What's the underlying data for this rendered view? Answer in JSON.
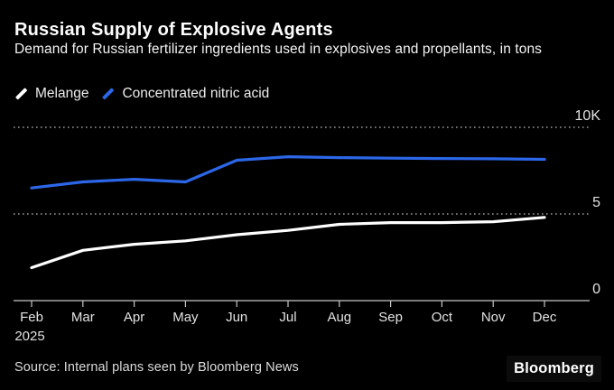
{
  "header": {
    "title": "Russian Supply of Explosive Agents",
    "subtitle": "Demand for Russian fertilizer ingredients used in explosives and propellants, in tons"
  },
  "legend": {
    "items": [
      {
        "label": "Melange",
        "color": "#ffffff"
      },
      {
        "label": "Concentrated nitric acid",
        "color": "#2b67e8"
      }
    ]
  },
  "chart_data": {
    "type": "line",
    "categories": [
      "Feb",
      "Mar",
      "Apr",
      "May",
      "Jun",
      "Jul",
      "Aug",
      "Sep",
      "Oct",
      "Nov",
      "Dec"
    ],
    "x_axis_year": "2025",
    "series": [
      {
        "name": "Melange",
        "color": "#ffffff",
        "values": [
          1900,
          2900,
          3250,
          3450,
          3800,
          4050,
          4400,
          4500,
          4500,
          4550,
          4800
        ]
      },
      {
        "name": "Concentrated nitric acid",
        "color": "#2b67e8",
        "values": [
          6500,
          6850,
          7000,
          6850,
          8100,
          8300,
          8250,
          8220,
          8200,
          8180,
          8150
        ]
      }
    ],
    "unit": "tons",
    "ylim": [
      0,
      10000
    ],
    "y_ticks": [
      {
        "value": 0,
        "label": "0"
      },
      {
        "value": 5000,
        "label": "5"
      },
      {
        "value": 10000,
        "label": "10K"
      }
    ],
    "grid": "dotted-horizontal",
    "legend_position": "top-left"
  },
  "footer": {
    "source": "Source: Internal plans seen by Bloomberg News",
    "logo": "Bloomberg"
  },
  "colors": {
    "background": "#000000",
    "title_text": "#fdfdfd",
    "axis_line": "#c8c8c8",
    "axis_label": "#e2e2e2",
    "grid_dots": "#9a9a9a",
    "melange_line": "#ffffff",
    "nitric_line": "#2b67e8"
  }
}
